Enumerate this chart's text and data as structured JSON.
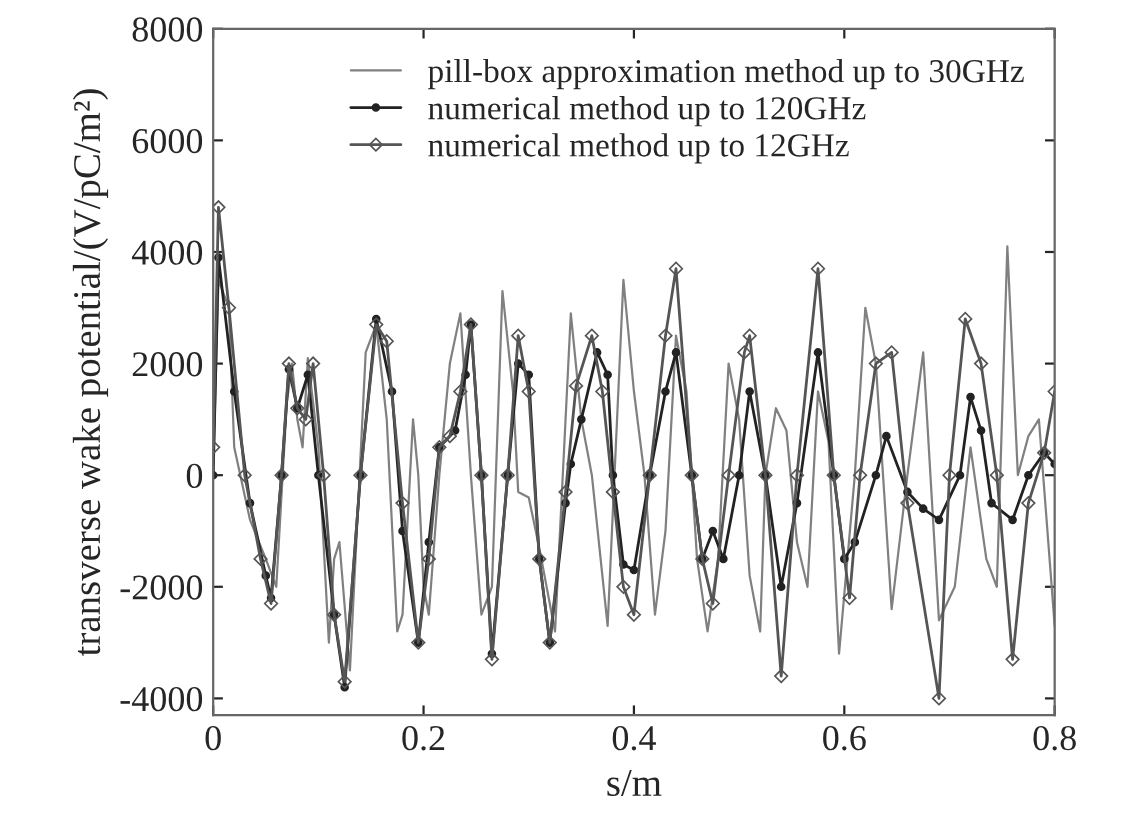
{
  "chart_data": {
    "type": "line",
    "xlabel": "s/m",
    "ylabel": "transverse wake potential/(V/pC/m²)",
    "xlim": [
      0,
      0.8
    ],
    "ylim": [
      -4300,
      8000
    ],
    "xticks": [
      0,
      0.2,
      0.4,
      0.6,
      0.8
    ],
    "yticks": [
      -4000,
      -2000,
      0,
      2000,
      4000,
      6000,
      8000
    ],
    "grid": false,
    "legend": "top right",
    "series": [
      {
        "name": "pill-box approximation method up to 30GHz",
        "color": "#808080",
        "marker": "none",
        "x": [
          0,
          0.005,
          0.015,
          0.02,
          0.035,
          0.05,
          0.06,
          0.07,
          0.075,
          0.08,
          0.085,
          0.09,
          0.1,
          0.11,
          0.115,
          0.12,
          0.13,
          0.145,
          0.155,
          0.165,
          0.175,
          0.18,
          0.19,
          0.195,
          0.2,
          0.205,
          0.215,
          0.225,
          0.235,
          0.245,
          0.255,
          0.265,
          0.275,
          0.285,
          0.29,
          0.3,
          0.31,
          0.325,
          0.34,
          0.35,
          0.36,
          0.375,
          0.39,
          0.4,
          0.41,
          0.42,
          0.43,
          0.44,
          0.45,
          0.46,
          0.47,
          0.48,
          0.49,
          0.5,
          0.51,
          0.52,
          0.525,
          0.535,
          0.545,
          0.555,
          0.565,
          0.575,
          0.585,
          0.595,
          0.61,
          0.62,
          0.63,
          0.645,
          0.66,
          0.675,
          0.69,
          0.705,
          0.72,
          0.735,
          0.745,
          0.755,
          0.765,
          0.775,
          0.785,
          0.8
        ],
        "values": [
          0,
          3500,
          3000,
          500,
          -800,
          -1500,
          -2000,
          1300,
          2000,
          1000,
          500,
          2100,
          500,
          -3000,
          -1500,
          -1200,
          -3500,
          2200,
          2700,
          1000,
          -2800,
          -2500,
          1000,
          0,
          -2000,
          -2500,
          0,
          2000,
          2900,
          0,
          -2500,
          -2000,
          3300,
          1500,
          -300,
          -400,
          -1300,
          -2800,
          2900,
          1000,
          0,
          -2700,
          3500,
          1500,
          0,
          -2500,
          -1000,
          2500,
          1500,
          -1500,
          -2800,
          -1500,
          2000,
          1000,
          -1800,
          -2800,
          0,
          1200,
          800,
          -1200,
          -2000,
          1500,
          600,
          -3200,
          0,
          3000,
          2000,
          -2400,
          0,
          2200,
          -2600,
          -2000,
          500,
          -1500,
          -2000,
          4100,
          0,
          700,
          1000,
          -2700
        ]
      },
      {
        "name": "numerical method up to 120GHz",
        "color": "#222222",
        "marker": "circle",
        "x": [
          0,
          0.005,
          0.02,
          0.035,
          0.05,
          0.055,
          0.065,
          0.072,
          0.08,
          0.09,
          0.1,
          0.115,
          0.125,
          0.14,
          0.155,
          0.17,
          0.18,
          0.195,
          0.205,
          0.215,
          0.23,
          0.24,
          0.245,
          0.255,
          0.265,
          0.28,
          0.29,
          0.3,
          0.31,
          0.32,
          0.335,
          0.34,
          0.35,
          0.365,
          0.375,
          0.38,
          0.39,
          0.4,
          0.415,
          0.43,
          0.44,
          0.455,
          0.465,
          0.475,
          0.485,
          0.5,
          0.51,
          0.525,
          0.54,
          0.555,
          0.575,
          0.59,
          0.6,
          0.61,
          0.63,
          0.64,
          0.66,
          0.675,
          0.69,
          0.71,
          0.72,
          0.73,
          0.74,
          0.76,
          0.775,
          0.79,
          0.8
        ],
        "values": [
          0,
          3900,
          1500,
          -500,
          -1800,
          -2200,
          0,
          1900,
          1200,
          1800,
          0,
          -2500,
          -3800,
          0,
          2800,
          1500,
          -1000,
          -3000,
          -1200,
          500,
          800,
          1800,
          2700,
          0,
          -3200,
          0,
          2000,
          1800,
          -1500,
          -3000,
          -500,
          200,
          1000,
          2200,
          1800,
          0,
          -1600,
          -1700,
          0,
          1500,
          2200,
          0,
          -1500,
          -1000,
          -1500,
          0,
          1500,
          0,
          -2000,
          -500,
          2200,
          0,
          -1500,
          -1200,
          0,
          700,
          -300,
          -600,
          -800,
          0,
          1400,
          800,
          -500,
          -800,
          0,
          400,
          200
        ]
      },
      {
        "name": "numerical method up to 12GHz",
        "color": "#555555",
        "marker": "diamond",
        "x": [
          0,
          0.005,
          0.015,
          0.03,
          0.045,
          0.055,
          0.065,
          0.072,
          0.08,
          0.088,
          0.095,
          0.105,
          0.115,
          0.125,
          0.14,
          0.155,
          0.165,
          0.18,
          0.195,
          0.205,
          0.215,
          0.225,
          0.235,
          0.245,
          0.255,
          0.265,
          0.28,
          0.29,
          0.3,
          0.31,
          0.32,
          0.335,
          0.345,
          0.36,
          0.37,
          0.38,
          0.39,
          0.4,
          0.415,
          0.43,
          0.44,
          0.455,
          0.465,
          0.475,
          0.49,
          0.505,
          0.51,
          0.525,
          0.54,
          0.555,
          0.575,
          0.59,
          0.605,
          0.615,
          0.63,
          0.645,
          0.66,
          0.69,
          0.7,
          0.715,
          0.73,
          0.745,
          0.76,
          0.775,
          0.79,
          0.8
        ],
        "values": [
          500,
          4800,
          3000,
          0,
          -1500,
          -2300,
          0,
          2000,
          1200,
          1000,
          2000,
          0,
          -2500,
          -3700,
          0,
          2700,
          2400,
          -500,
          -3000,
          -1500,
          500,
          700,
          1500,
          2700,
          0,
          -3300,
          0,
          2500,
          1500,
          -1500,
          -3000,
          -300,
          1600,
          2500,
          1500,
          -300,
          -2000,
          -2500,
          0,
          2500,
          3700,
          0,
          -1500,
          -2300,
          0,
          2200,
          2500,
          0,
          -3600,
          0,
          3700,
          0,
          -2200,
          0,
          2000,
          2200,
          -500,
          -4000,
          0,
          2800,
          2000,
          0,
          -3300,
          -500,
          400,
          1500
        ]
      }
    ]
  }
}
